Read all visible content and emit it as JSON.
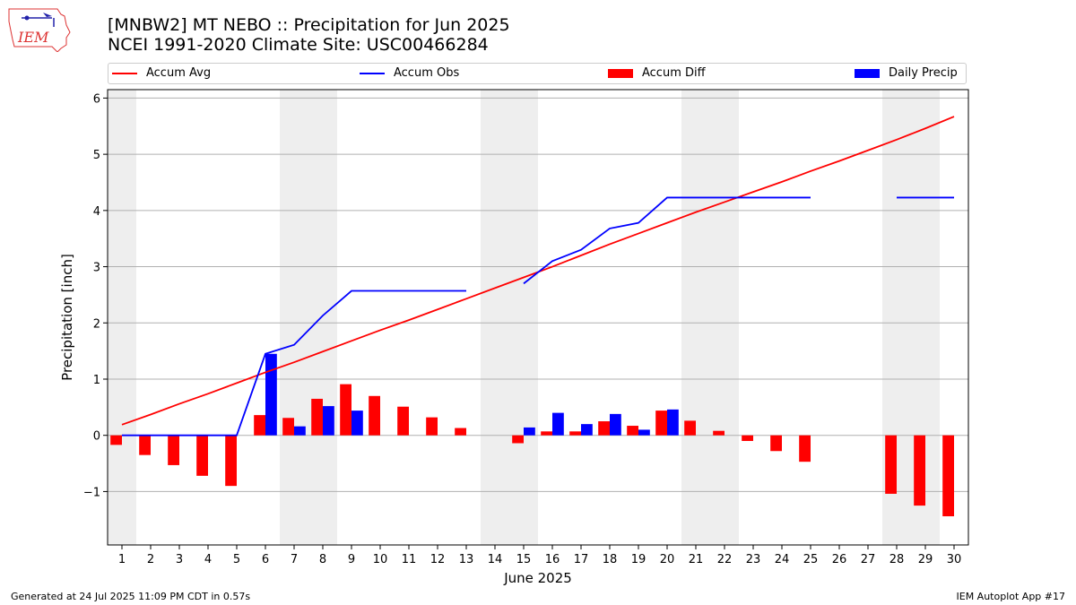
{
  "header": {
    "title_line1": "[MNBW2] MT NEBO :: Precipitation for Jun 2025",
    "title_line2": "NCEI 1991-2020 Climate Site: USC00466284",
    "logo_text": "IEM"
  },
  "footer": {
    "generated": "Generated at 24 Jul 2025 11:09 PM CDT in 0.57s",
    "app": "IEM Autoplot App #17"
  },
  "legend": {
    "accum_avg": "Accum Avg",
    "accum_obs": "Accum Obs",
    "accum_diff": "Accum Diff",
    "daily_precip": "Daily Precip"
  },
  "colors": {
    "avg": "#ff0000",
    "obs": "#0000ff",
    "diff": "#ff0000",
    "daily": "#0000ff",
    "weekend": "#eeeeee",
    "grid": "#b0b0b0"
  },
  "chart_data": {
    "type": "bar",
    "xlabel": "June 2025",
    "ylabel": "Precipitation [inch]",
    "xlim": [
      0.5,
      30.5
    ],
    "ylim": [
      -1.95,
      6.15
    ],
    "yticks": [
      -1,
      0,
      1,
      2,
      3,
      4,
      5,
      6
    ],
    "ytick_labels": [
      "−1",
      "0",
      "1",
      "2",
      "3",
      "4",
      "5",
      "6"
    ],
    "days": [
      1,
      2,
      3,
      4,
      5,
      6,
      7,
      8,
      9,
      10,
      11,
      12,
      13,
      14,
      15,
      16,
      17,
      18,
      19,
      20,
      21,
      22,
      23,
      24,
      25,
      26,
      27,
      28,
      29,
      30
    ],
    "weekend_days": [
      1,
      7,
      8,
      14,
      15,
      21,
      22,
      28,
      29
    ],
    "grid": true,
    "legend_position": "top",
    "series": [
      {
        "name": "Accum Avg",
        "kind": "line",
        "values": [
          0.19,
          0.37,
          0.56,
          0.74,
          0.93,
          1.12,
          1.3,
          1.49,
          1.68,
          1.87,
          2.05,
          2.24,
          2.43,
          2.62,
          2.81,
          3.0,
          3.2,
          3.4,
          3.59,
          3.78,
          3.97,
          4.15,
          4.33,
          4.51,
          4.7,
          4.88,
          5.07,
          5.26,
          5.46,
          5.67
        ]
      },
      {
        "name": "Accum Obs",
        "kind": "line",
        "values": [
          0.0,
          0.0,
          0.0,
          0.0,
          0.0,
          1.45,
          1.61,
          2.13,
          2.57,
          2.57,
          2.57,
          2.57,
          2.57,
          null,
          2.7,
          3.1,
          3.3,
          3.68,
          3.78,
          4.23,
          4.23,
          4.23,
          4.23,
          4.23,
          4.23,
          null,
          null,
          4.23,
          4.23,
          4.23
        ]
      },
      {
        "name": "Accum Diff",
        "kind": "bar",
        "values": [
          -0.17,
          -0.35,
          -0.53,
          -0.72,
          -0.9,
          0.36,
          0.31,
          0.65,
          0.91,
          0.7,
          0.51,
          0.32,
          0.13,
          null,
          -0.14,
          0.07,
          0.07,
          0.25,
          0.17,
          0.44,
          0.26,
          0.08,
          -0.1,
          -0.28,
          -0.47,
          null,
          null,
          -1.04,
          -1.25,
          -1.44
        ]
      },
      {
        "name": "Daily Precip",
        "kind": "bar",
        "values": [
          0,
          0,
          0,
          0,
          0,
          1.45,
          0.16,
          0.52,
          0.44,
          0,
          0,
          0,
          0,
          null,
          0.14,
          0.4,
          0.2,
          0.38,
          0.1,
          0.46,
          0,
          0,
          0,
          0,
          0,
          null,
          null,
          0,
          0,
          0
        ]
      }
    ]
  }
}
